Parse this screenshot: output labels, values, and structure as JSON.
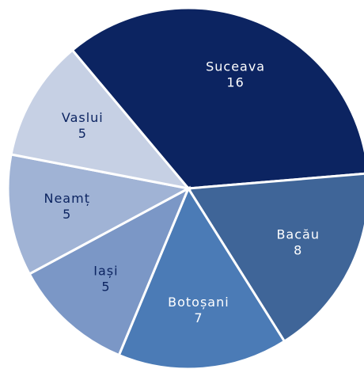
{
  "chart_data": {
    "type": "pie",
    "categories": [
      "Suceava",
      "Bacău",
      "Botoșani",
      "Iași",
      "Neamț",
      "Vaslui"
    ],
    "values": [
      16,
      8,
      7,
      5,
      5,
      5
    ],
    "colors": [
      "#0c2461",
      "#3f6598",
      "#4b7bb6",
      "#7b97c6",
      "#a0b3d5",
      "#c6d0e4"
    ]
  }
}
